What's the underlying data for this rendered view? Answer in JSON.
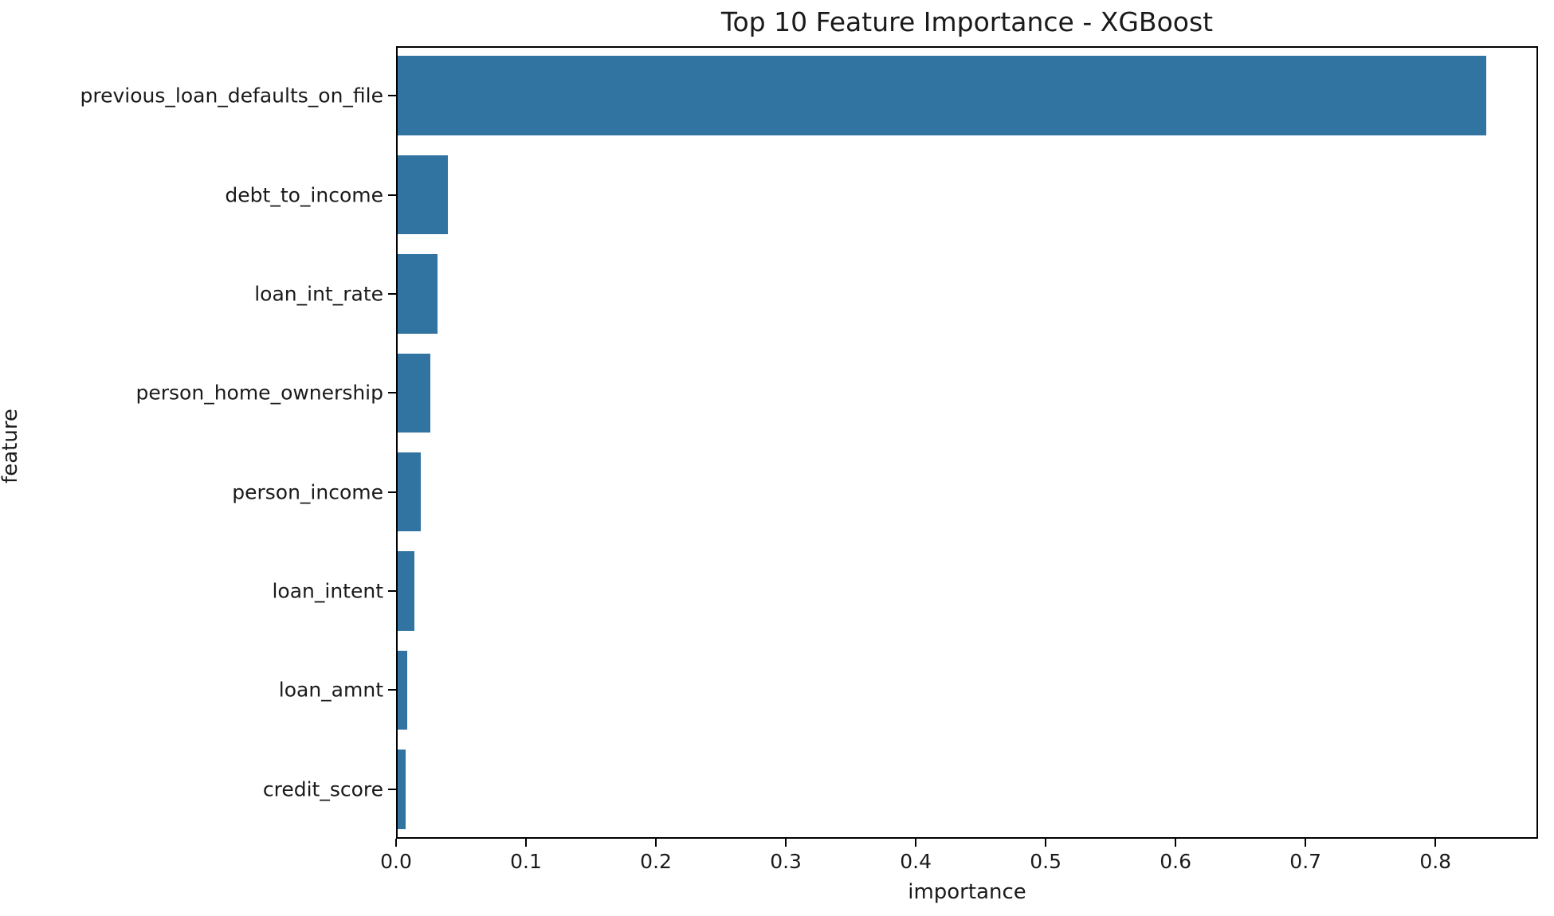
{
  "chart_data": {
    "type": "bar",
    "orientation": "horizontal",
    "title": "Top 10 Feature Importance - XGBoost",
    "xlabel": "importance",
    "ylabel": "feature",
    "categories": [
      "previous_loan_defaults_on_file",
      "debt_to_income",
      "loan_int_rate",
      "person_home_ownership",
      "person_income",
      "loan_intent",
      "loan_amnt",
      "credit_score"
    ],
    "values": [
      0.84,
      0.039,
      0.031,
      0.025,
      0.018,
      0.013,
      0.0075,
      0.006
    ],
    "xlim": [
      0,
      0.879
    ],
    "xticks": [
      0.0,
      0.1,
      0.2,
      0.3,
      0.4,
      0.5,
      0.6,
      0.7,
      0.8
    ],
    "xtick_labels": [
      "0.0",
      "0.1",
      "0.2",
      "0.3",
      "0.4",
      "0.5",
      "0.6",
      "0.7",
      "0.8"
    ],
    "bar_color": "#3274a1",
    "bar_fraction_of_slot": 0.8,
    "grid": false,
    "legend": null
  }
}
